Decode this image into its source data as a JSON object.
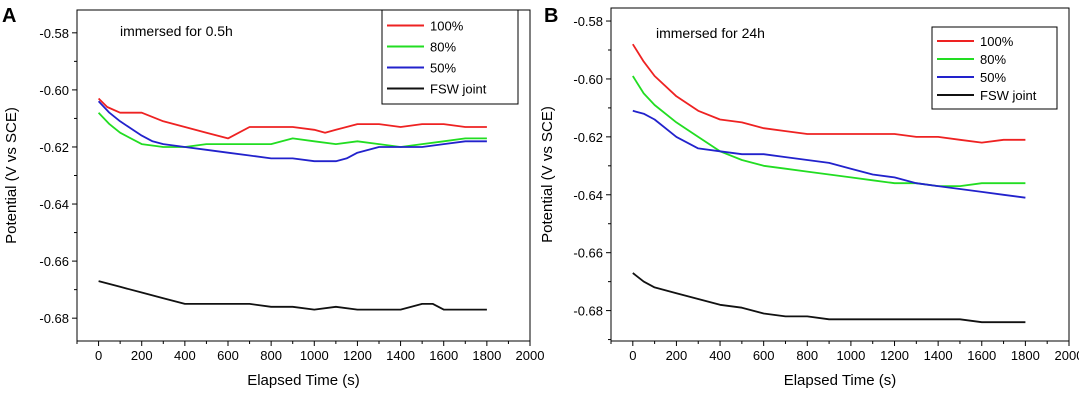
{
  "chart_data": [
    {
      "panel": "A",
      "type": "line",
      "annotation": "immersed for 0.5h",
      "xlabel": "Elapsed Time (s)",
      "ylabel": "Potential (V vs SCE)",
      "xlim": [
        -100,
        2000
      ],
      "ylim": [
        -0.688,
        -0.572
      ],
      "xticks": [
        0,
        200,
        400,
        600,
        800,
        1000,
        1200,
        1400,
        1600,
        1800,
        2000
      ],
      "xtick_labels": [
        "0",
        "200",
        "400",
        "600",
        "800",
        "1000",
        "1200",
        "1400",
        "1600",
        "1800",
        "2000"
      ],
      "yticks": [
        -0.68,
        -0.66,
        -0.64,
        -0.62,
        -0.6,
        -0.58
      ],
      "ytick_labels": [
        "-0.68",
        "-0.66",
        "-0.64",
        "-0.62",
        "-0.60",
        "-0.58"
      ],
      "legend_position": "top-right",
      "series": [
        {
          "name": "100%",
          "color": "#ee2222",
          "x": [
            0,
            40,
            100,
            200,
            300,
            400,
            500,
            600,
            700,
            800,
            900,
            1000,
            1050,
            1100,
            1200,
            1300,
            1400,
            1500,
            1600,
            1700,
            1800
          ],
          "y": [
            -0.603,
            -0.606,
            -0.608,
            -0.608,
            -0.611,
            -0.613,
            -0.615,
            -0.617,
            -0.613,
            -0.613,
            -0.613,
            -0.614,
            -0.615,
            -0.614,
            -0.612,
            -0.612,
            -0.613,
            -0.612,
            -0.612,
            -0.613,
            -0.613
          ]
        },
        {
          "name": "80%",
          "color": "#22dd22",
          "x": [
            0,
            50,
            100,
            200,
            300,
            400,
            500,
            600,
            700,
            800,
            900,
            1000,
            1100,
            1200,
            1300,
            1400,
            1500,
            1600,
            1700,
            1800
          ],
          "y": [
            -0.608,
            -0.612,
            -0.615,
            -0.619,
            -0.62,
            -0.62,
            -0.619,
            -0.619,
            -0.619,
            -0.619,
            -0.617,
            -0.618,
            -0.619,
            -0.618,
            -0.619,
            -0.62,
            -0.619,
            -0.618,
            -0.617,
            -0.617
          ]
        },
        {
          "name": "50%",
          "color": "#2222cc",
          "x": [
            0,
            50,
            100,
            200,
            250,
            300,
            400,
            500,
            600,
            700,
            800,
            900,
            1000,
            1100,
            1150,
            1200,
            1300,
            1400,
            1500,
            1600,
            1700,
            1800
          ],
          "y": [
            -0.604,
            -0.608,
            -0.611,
            -0.616,
            -0.618,
            -0.619,
            -0.62,
            -0.621,
            -0.622,
            -0.623,
            -0.624,
            -0.624,
            -0.625,
            -0.625,
            -0.624,
            -0.622,
            -0.62,
            -0.62,
            -0.62,
            -0.619,
            -0.618,
            -0.618
          ]
        },
        {
          "name": "FSW joint",
          "color": "#111111",
          "x": [
            0,
            100,
            200,
            300,
            400,
            500,
            600,
            700,
            800,
            900,
            1000,
            1100,
            1200,
            1300,
            1400,
            1450,
            1500,
            1550,
            1600,
            1700,
            1800
          ],
          "y": [
            -0.667,
            -0.669,
            -0.671,
            -0.673,
            -0.675,
            -0.675,
            -0.675,
            -0.675,
            -0.676,
            -0.676,
            -0.677,
            -0.676,
            -0.677,
            -0.677,
            -0.677,
            -0.676,
            -0.675,
            -0.675,
            -0.677,
            -0.677,
            -0.677
          ]
        }
      ]
    },
    {
      "panel": "B",
      "type": "line",
      "annotation": "immersed for 24h",
      "xlabel": "Elapsed Time (s)",
      "ylabel": "Potential (V vs SCE)",
      "xlim": [
        -100,
        2000
      ],
      "ylim": [
        -0.6905,
        -0.5755
      ],
      "xticks": [
        0,
        200,
        400,
        600,
        800,
        1000,
        1200,
        1400,
        1600,
        1800,
        2000
      ],
      "xtick_labels": [
        "0",
        "200",
        "400",
        "600",
        "800",
        "1000",
        "1200",
        "1400",
        "1600",
        "1800",
        "2000"
      ],
      "yticks": [
        -0.68,
        -0.66,
        -0.64,
        -0.62,
        -0.6,
        -0.58
      ],
      "ytick_labels": [
        "-0.68",
        "-0.66",
        "-0.64",
        "-0.62",
        "-0.60",
        "-0.58"
      ],
      "legend_position": "top-right",
      "series": [
        {
          "name": "100%",
          "color": "#ee2222",
          "x": [
            0,
            50,
            100,
            200,
            300,
            400,
            500,
            600,
            700,
            800,
            900,
            1000,
            1100,
            1200,
            1300,
            1400,
            1500,
            1600,
            1700,
            1800
          ],
          "y": [
            -0.588,
            -0.594,
            -0.599,
            -0.606,
            -0.611,
            -0.614,
            -0.615,
            -0.617,
            -0.618,
            -0.619,
            -0.619,
            -0.619,
            -0.619,
            -0.619,
            -0.62,
            -0.62,
            -0.621,
            -0.622,
            -0.621,
            -0.621
          ]
        },
        {
          "name": "80%",
          "color": "#22dd22",
          "x": [
            0,
            50,
            100,
            200,
            300,
            400,
            500,
            600,
            700,
            800,
            900,
            1000,
            1100,
            1200,
            1300,
            1400,
            1500,
            1600,
            1700,
            1800
          ],
          "y": [
            -0.599,
            -0.605,
            -0.609,
            -0.615,
            -0.62,
            -0.625,
            -0.628,
            -0.63,
            -0.631,
            -0.632,
            -0.633,
            -0.634,
            -0.635,
            -0.636,
            -0.636,
            -0.637,
            -0.637,
            -0.636,
            -0.636,
            -0.636
          ]
        },
        {
          "name": "50%",
          "color": "#2222cc",
          "x": [
            0,
            50,
            100,
            200,
            300,
            400,
            500,
            600,
            700,
            800,
            900,
            1000,
            1100,
            1200,
            1300,
            1400,
            1500,
            1600,
            1700,
            1800
          ],
          "y": [
            -0.611,
            -0.612,
            -0.614,
            -0.62,
            -0.624,
            -0.625,
            -0.626,
            -0.626,
            -0.627,
            -0.628,
            -0.629,
            -0.631,
            -0.633,
            -0.634,
            -0.636,
            -0.637,
            -0.638,
            -0.639,
            -0.64,
            -0.641
          ]
        },
        {
          "name": "FSW joint",
          "color": "#111111",
          "x": [
            0,
            50,
            100,
            200,
            300,
            400,
            500,
            600,
            700,
            800,
            900,
            1000,
            1100,
            1200,
            1300,
            1400,
            1500,
            1600,
            1700,
            1800
          ],
          "y": [
            -0.667,
            -0.67,
            -0.672,
            -0.674,
            -0.676,
            -0.678,
            -0.679,
            -0.681,
            -0.682,
            -0.682,
            -0.683,
            -0.683,
            -0.683,
            -0.683,
            -0.683,
            -0.683,
            -0.683,
            -0.684,
            -0.684,
            -0.684
          ]
        }
      ]
    }
  ]
}
